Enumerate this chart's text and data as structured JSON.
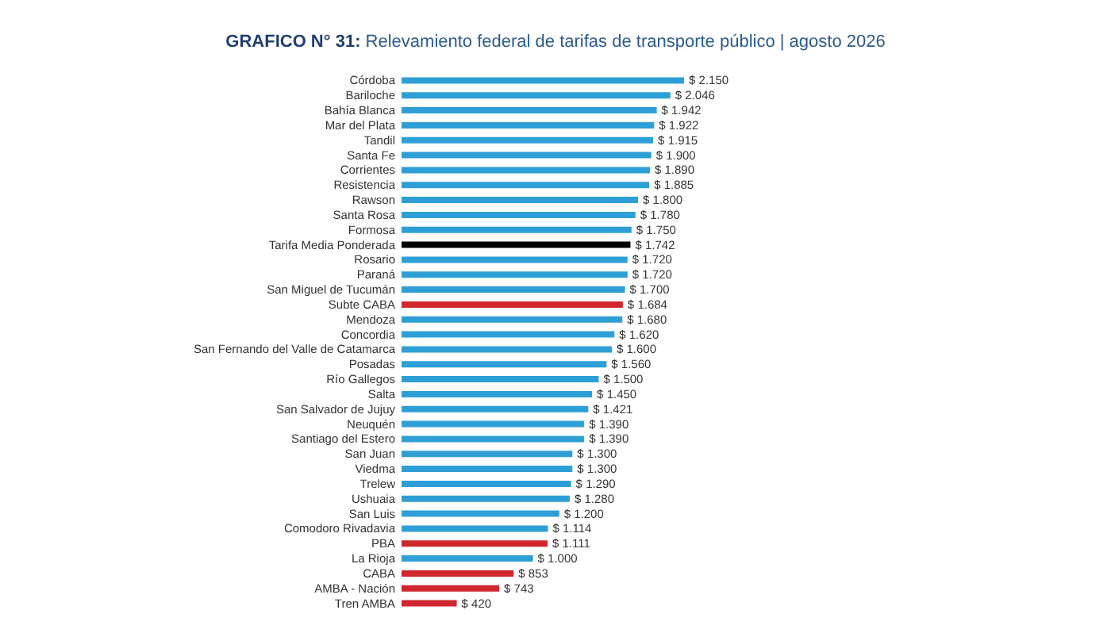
{
  "chart_data": {
    "type": "bar",
    "orientation": "horizontal",
    "title": "GRAFICO N° 31: Relevamiento federal de tarifas de transporte público | agosto 2026",
    "categories": [
      "Córdoba",
      "Bariloche",
      "Bahía Blanca",
      "Mar del Plata",
      "Tandil",
      "Santa Fe",
      "Corrientes",
      "Resistencia",
      "Rawson",
      "Santa Rosa",
      "Formosa",
      "Tarifa Media Ponderada",
      "Rosario",
      "Paraná",
      "San Miguel de Tucumán",
      "Subte CABA",
      "Mendoza",
      "Concordia",
      "San Fernando del Valle de Catamarca",
      "Posadas",
      "Río Gallegos",
      "Salta",
      "San Salvador de Jujuy",
      "Neuquén",
      "Santiago del Estero",
      "San Juan",
      "Viedma",
      "Trelew",
      "Ushuaia",
      "San Luis",
      "Comodoro Rivadavia",
      "PBA",
      "La Rioja",
      "CABA",
      "AMBA - Nación",
      "Tren AMBA"
    ],
    "values": [
      2150,
      2046,
      1942,
      1922,
      1915,
      1900,
      1890,
      1885,
      1800,
      1780,
      1750,
      1742,
      1720,
      1720,
      1700,
      1684,
      1680,
      1620,
      1600,
      1560,
      1500,
      1450,
      1421,
      1390,
      1390,
      1300,
      1300,
      1290,
      1280,
      1200,
      1114,
      1111,
      1000,
      853,
      743,
      420
    ],
    "value_labels": [
      "$ 2.150",
      "$ 2.046",
      "$ 1.942",
      "$ 1.922",
      "$ 1.915",
      "$ 1.900",
      "$ 1.890",
      "$ 1.885",
      "$ 1.800",
      "$ 1.780",
      "$ 1.750",
      "$ 1.742",
      "$ 1.720",
      "$ 1.720",
      "$ 1.700",
      "$ 1.684",
      "$ 1.680",
      "$ 1.620",
      "$ 1.600",
      "$ 1.560",
      "$ 1.500",
      "$ 1.450",
      "$ 1.421",
      "$ 1.390",
      "$ 1.390",
      "$ 1.300",
      "$ 1.300",
      "$ 1.290",
      "$ 1.280",
      "$ 1.200",
      "$ 1.114",
      "$ 1.111",
      "$ 1.000",
      "$ 853",
      "$ 743",
      "$ 420"
    ],
    "colors": [
      "#2e9fd6",
      "#2e9fd6",
      "#2e9fd6",
      "#2e9fd6",
      "#2e9fd6",
      "#2e9fd6",
      "#2e9fd6",
      "#2e9fd6",
      "#2e9fd6",
      "#2e9fd6",
      "#2e9fd6",
      "#000000",
      "#2e9fd6",
      "#2e9fd6",
      "#2e9fd6",
      "#d0262e",
      "#2e9fd6",
      "#2e9fd6",
      "#2e9fd6",
      "#2e9fd6",
      "#2e9fd6",
      "#2e9fd6",
      "#2e9fd6",
      "#2e9fd6",
      "#2e9fd6",
      "#2e9fd6",
      "#2e9fd6",
      "#2e9fd6",
      "#2e9fd6",
      "#2e9fd6",
      "#2e9fd6",
      "#d0262e",
      "#2e9fd6",
      "#d0262e",
      "#d0262e",
      "#d0262e"
    ]
  }
}
